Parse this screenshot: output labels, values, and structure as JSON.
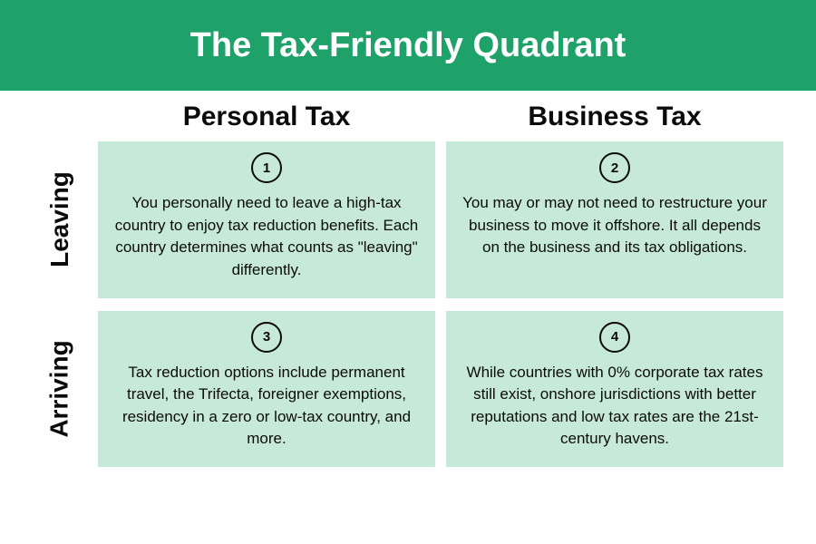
{
  "title": "The Tax-Friendly Quadrant",
  "colors": {
    "header_bg": "#1fa26a",
    "header_text": "#ffffff",
    "card_bg": "#c7e9d9",
    "text": "#0b0b0b",
    "page_bg": "#ffffff"
  },
  "columns": {
    "col1": "Personal Tax",
    "col2": "Business Tax"
  },
  "rows": {
    "row1": "Leaving",
    "row2": "Arriving"
  },
  "cards": {
    "c1": {
      "num": "1",
      "text": "You personally need to leave a high-tax country to enjoy tax reduction benefits. Each country determines what counts as \"leaving\" differently."
    },
    "c2": {
      "num": "2",
      "text": "You may or may not need to restructure your business to move it offshore. It all depends on the business and its tax obligations."
    },
    "c3": {
      "num": "3",
      "text": "Tax reduction options include permanent travel, the Trifecta, foreigner exemptions, residency in a zero or low-tax country, and more."
    },
    "c4": {
      "num": "4",
      "text": "While countries with 0% corporate tax rates still exist, onshore jurisdictions with better reputations and low tax rates are the 21st-century havens."
    }
  },
  "layout": {
    "badge_border_width": 2,
    "title_fontsize": 38,
    "col_header_fontsize": 30,
    "row_label_fontsize": 28,
    "card_text_fontsize": 17
  }
}
